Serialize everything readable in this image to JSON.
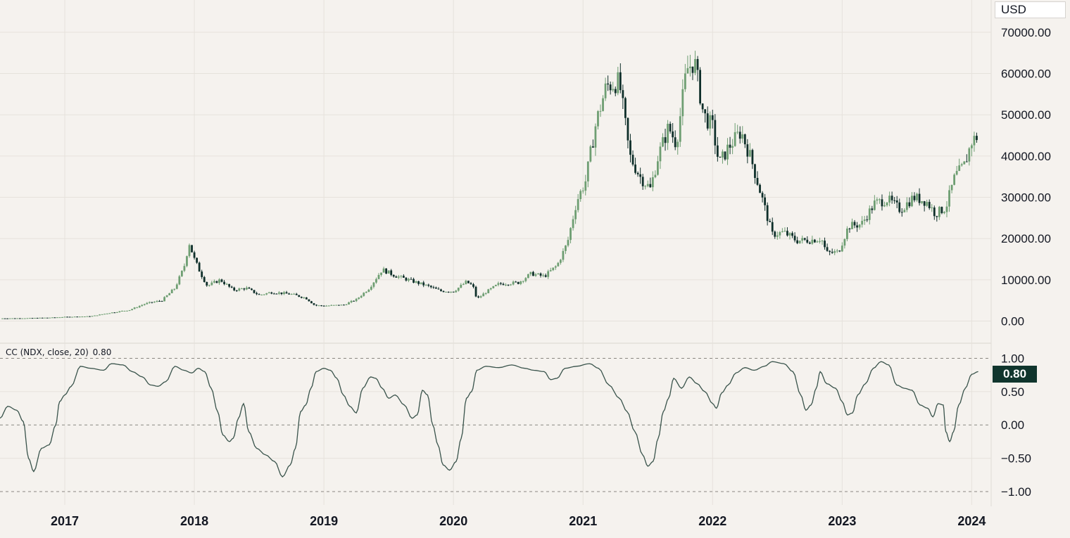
{
  "currency": "USD",
  "indicator": {
    "label": "CC (NDX, close, 20)",
    "last_value_legend": "0.80",
    "last_value_badge": "0.80"
  },
  "colors": {
    "background": "#f5f2ee",
    "up_candle": "#6e9e72",
    "down_candle": "#0f2f2a",
    "indicator_line": "#39534b",
    "badge_bg": "#10352d",
    "grid": "#e6e2dc"
  },
  "chart_data": [
    {
      "type": "candlestick",
      "name": "price",
      "unit": "USD",
      "ylim": [
        -4000,
        71000
      ],
      "y_ticks": [
        0,
        10000,
        20000,
        30000,
        40000,
        50000,
        60000,
        70000
      ],
      "y_tick_labels": [
        "0.00",
        "10000.00",
        "20000.00",
        "30000.00",
        "40000.00",
        "50000.00",
        "60000.00",
        "70000.00"
      ],
      "x_range": [
        2016.5,
        2024.15
      ],
      "x_ticks": [
        2017,
        2018,
        2019,
        2020,
        2021,
        2022,
        2023,
        2024
      ],
      "x_tick_labels": [
        "2017",
        "2018",
        "2019",
        "2020",
        "2021",
        "2022",
        "2023",
        "2024"
      ],
      "grid": true,
      "close_points": [
        [
          2016.5,
          650
        ],
        [
          2016.7,
          700
        ],
        [
          2016.9,
          850
        ],
        [
          2017.0,
          1000
        ],
        [
          2017.2,
          1150
        ],
        [
          2017.35,
          2000
        ],
        [
          2017.5,
          2700
        ],
        [
          2017.62,
          4200
        ],
        [
          2017.75,
          5000
        ],
        [
          2017.85,
          8000
        ],
        [
          2017.92,
          13000
        ],
        [
          2017.96,
          19000
        ],
        [
          2018.0,
          15000
        ],
        [
          2018.05,
          11500
        ],
        [
          2018.1,
          8500
        ],
        [
          2018.2,
          10000
        ],
        [
          2018.3,
          7500
        ],
        [
          2018.4,
          8000
        ],
        [
          2018.5,
          6300
        ],
        [
          2018.6,
          7000
        ],
        [
          2018.75,
          6500
        ],
        [
          2018.86,
          5600
        ],
        [
          2018.93,
          3800
        ],
        [
          2019.0,
          3700
        ],
        [
          2019.15,
          3900
        ],
        [
          2019.25,
          5200
        ],
        [
          2019.35,
          8000
        ],
        [
          2019.45,
          12500
        ],
        [
          2019.55,
          11000
        ],
        [
          2019.7,
          9500
        ],
        [
          2019.8,
          8500
        ],
        [
          2019.9,
          7300
        ],
        [
          2020.0,
          7200
        ],
        [
          2020.1,
          9500
        ],
        [
          2020.15,
          8500
        ],
        [
          2020.18,
          5300
        ],
        [
          2020.25,
          7000
        ],
        [
          2020.35,
          9000
        ],
        [
          2020.5,
          9300
        ],
        [
          2020.6,
          11500
        ],
        [
          2020.7,
          10800
        ],
        [
          2020.8,
          13500
        ],
        [
          2020.88,
          19000
        ],
        [
          2020.95,
          29000
        ],
        [
          2021.02,
          34000
        ],
        [
          2021.1,
          48000
        ],
        [
          2021.18,
          57000
        ],
        [
          2021.28,
          58000
        ],
        [
          2021.36,
          40000
        ],
        [
          2021.44,
          35000
        ],
        [
          2021.52,
          32000
        ],
        [
          2021.58,
          40000
        ],
        [
          2021.66,
          47000
        ],
        [
          2021.72,
          43000
        ],
        [
          2021.8,
          61000
        ],
        [
          2021.86,
          63000
        ],
        [
          2021.93,
          50000
        ],
        [
          2022.0,
          47000
        ],
        [
          2022.05,
          38000
        ],
        [
          2022.12,
          42000
        ],
        [
          2022.22,
          46000
        ],
        [
          2022.3,
          39000
        ],
        [
          2022.38,
          30000
        ],
        [
          2022.46,
          21000
        ],
        [
          2022.55,
          21500
        ],
        [
          2022.65,
          19500
        ],
        [
          2022.75,
          19600
        ],
        [
          2022.84,
          20000
        ],
        [
          2022.88,
          16500
        ],
        [
          2022.97,
          16700
        ],
        [
          2023.05,
          23000
        ],
        [
          2023.15,
          23500
        ],
        [
          2023.25,
          28500
        ],
        [
          2023.35,
          29500
        ],
        [
          2023.45,
          27000
        ],
        [
          2023.55,
          30000
        ],
        [
          2023.65,
          29000
        ],
        [
          2023.72,
          26000
        ],
        [
          2023.8,
          27500
        ],
        [
          2023.87,
          35000
        ],
        [
          2023.94,
          37500
        ],
        [
          2024.0,
          43500
        ],
        [
          2024.05,
          45000
        ]
      ]
    },
    {
      "type": "line",
      "name": "CC (NDX, close, 20)",
      "ylim": [
        -1.18,
        1.1
      ],
      "y_ticks": [
        1.0,
        0.5,
        0.0,
        -0.5,
        -1.0
      ],
      "y_tick_labels": [
        "1.00",
        "0.50",
        "0.00",
        "−0.50",
        "−1.00"
      ],
      "dashed_levels": [
        1.0,
        0.0,
        -1.0
      ],
      "grid": true,
      "x_range": [
        2016.5,
        2024.15
      ],
      "points": [
        [
          2016.5,
          0.1
        ],
        [
          2016.56,
          0.28
        ],
        [
          2016.63,
          0.22
        ],
        [
          2016.68,
          0.05
        ],
        [
          2016.72,
          -0.5
        ],
        [
          2016.76,
          -0.7
        ],
        [
          2016.82,
          -0.35
        ],
        [
          2016.88,
          -0.3
        ],
        [
          2016.93,
          0.0
        ],
        [
          2016.96,
          0.35
        ],
        [
          2017.0,
          0.45
        ],
        [
          2017.05,
          0.58
        ],
        [
          2017.12,
          0.88
        ],
        [
          2017.2,
          0.85
        ],
        [
          2017.3,
          0.82
        ],
        [
          2017.36,
          0.92
        ],
        [
          2017.45,
          0.9
        ],
        [
          2017.52,
          0.8
        ],
        [
          2017.6,
          0.72
        ],
        [
          2017.66,
          0.6
        ],
        [
          2017.72,
          0.58
        ],
        [
          2017.78,
          0.65
        ],
        [
          2017.85,
          0.88
        ],
        [
          2017.92,
          0.82
        ],
        [
          2017.98,
          0.78
        ],
        [
          2018.03,
          0.85
        ],
        [
          2018.08,
          0.8
        ],
        [
          2018.13,
          0.55
        ],
        [
          2018.18,
          0.2
        ],
        [
          2018.22,
          -0.15
        ],
        [
          2018.27,
          -0.25
        ],
        [
          2018.3,
          -0.2
        ],
        [
          2018.34,
          0.1
        ],
        [
          2018.38,
          0.32
        ],
        [
          2018.42,
          -0.1
        ],
        [
          2018.48,
          -0.35
        ],
        [
          2018.55,
          -0.45
        ],
        [
          2018.62,
          -0.55
        ],
        [
          2018.68,
          -0.78
        ],
        [
          2018.74,
          -0.6
        ],
        [
          2018.78,
          -0.35
        ],
        [
          2018.82,
          0.2
        ],
        [
          2018.86,
          0.3
        ],
        [
          2018.9,
          0.55
        ],
        [
          2018.94,
          0.8
        ],
        [
          2019.0,
          0.85
        ],
        [
          2019.05,
          0.82
        ],
        [
          2019.1,
          0.7
        ],
        [
          2019.15,
          0.45
        ],
        [
          2019.2,
          0.28
        ],
        [
          2019.25,
          0.18
        ],
        [
          2019.3,
          0.55
        ],
        [
          2019.36,
          0.72
        ],
        [
          2019.4,
          0.7
        ],
        [
          2019.45,
          0.55
        ],
        [
          2019.5,
          0.4
        ],
        [
          2019.55,
          0.45
        ],
        [
          2019.62,
          0.3
        ],
        [
          2019.68,
          0.1
        ],
        [
          2019.72,
          0.15
        ],
        [
          2019.76,
          0.52
        ],
        [
          2019.8,
          0.45
        ],
        [
          2019.84,
          0.0
        ],
        [
          2019.88,
          -0.3
        ],
        [
          2019.92,
          -0.6
        ],
        [
          2019.97,
          -0.68
        ],
        [
          2020.02,
          -0.55
        ],
        [
          2020.06,
          -0.2
        ],
        [
          2020.1,
          0.4
        ],
        [
          2020.14,
          0.5
        ],
        [
          2020.18,
          0.82
        ],
        [
          2020.25,
          0.88
        ],
        [
          2020.35,
          0.86
        ],
        [
          2020.45,
          0.9
        ],
        [
          2020.55,
          0.85
        ],
        [
          2020.62,
          0.82
        ],
        [
          2020.7,
          0.8
        ],
        [
          2020.75,
          0.68
        ],
        [
          2020.8,
          0.7
        ],
        [
          2020.86,
          0.85
        ],
        [
          2020.95,
          0.88
        ],
        [
          2021.05,
          0.92
        ],
        [
          2021.12,
          0.85
        ],
        [
          2021.2,
          0.6
        ],
        [
          2021.28,
          0.4
        ],
        [
          2021.34,
          0.2
        ],
        [
          2021.4,
          -0.1
        ],
        [
          2021.46,
          -0.45
        ],
        [
          2021.5,
          -0.62
        ],
        [
          2021.54,
          -0.55
        ],
        [
          2021.58,
          -0.2
        ],
        [
          2021.62,
          0.2
        ],
        [
          2021.66,
          0.4
        ],
        [
          2021.7,
          0.7
        ],
        [
          2021.76,
          0.55
        ],
        [
          2021.82,
          0.72
        ],
        [
          2021.88,
          0.62
        ],
        [
          2021.94,
          0.5
        ],
        [
          2022.0,
          0.32
        ],
        [
          2022.03,
          0.25
        ],
        [
          2022.07,
          0.48
        ],
        [
          2022.12,
          0.6
        ],
        [
          2022.18,
          0.78
        ],
        [
          2022.25,
          0.86
        ],
        [
          2022.32,
          0.82
        ],
        [
          2022.4,
          0.88
        ],
        [
          2022.46,
          0.95
        ],
        [
          2022.55,
          0.92
        ],
        [
          2022.62,
          0.8
        ],
        [
          2022.68,
          0.45
        ],
        [
          2022.72,
          0.22
        ],
        [
          2022.76,
          0.3
        ],
        [
          2022.8,
          0.55
        ],
        [
          2022.83,
          0.8
        ],
        [
          2022.88,
          0.62
        ],
        [
          2022.95,
          0.55
        ],
        [
          2023.0,
          0.35
        ],
        [
          2023.04,
          0.15
        ],
        [
          2023.08,
          0.18
        ],
        [
          2023.12,
          0.45
        ],
        [
          2023.18,
          0.62
        ],
        [
          2023.24,
          0.85
        ],
        [
          2023.3,
          0.95
        ],
        [
          2023.36,
          0.9
        ],
        [
          2023.42,
          0.6
        ],
        [
          2023.48,
          0.55
        ],
        [
          2023.54,
          0.52
        ],
        [
          2023.6,
          0.3
        ],
        [
          2023.66,
          0.25
        ],
        [
          2023.7,
          0.12
        ],
        [
          2023.74,
          0.32
        ],
        [
          2023.78,
          0.3
        ],
        [
          2023.8,
          -0.1
        ],
        [
          2023.83,
          -0.25
        ],
        [
          2023.86,
          -0.1
        ],
        [
          2023.9,
          0.3
        ],
        [
          2023.95,
          0.55
        ],
        [
          2024.0,
          0.76
        ],
        [
          2024.05,
          0.8
        ]
      ]
    }
  ]
}
